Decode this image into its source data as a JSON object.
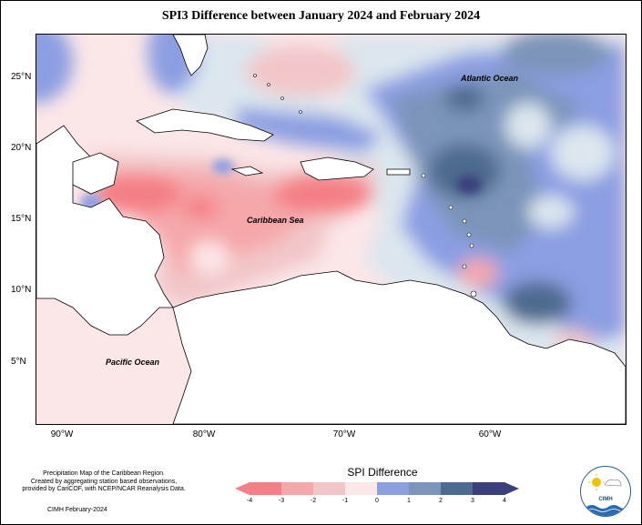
{
  "title": "SPI3 Difference between January 2024 and February 2024",
  "axes": {
    "lat_ticks": [
      "25°N",
      "20°N",
      "15°N",
      "10°N",
      "5°N"
    ],
    "lon_ticks": [
      "90°W",
      "80°W",
      "70°W",
      "60°W"
    ]
  },
  "labels": {
    "atlantic": "Atlantic Ocean",
    "caribbean": "Caribbean Sea",
    "pacific": "Pacific Ocean"
  },
  "legend": {
    "title": "SPI Difference",
    "ticks": [
      "-4",
      "-3",
      "-2",
      "-1",
      "0",
      "1",
      "2",
      "3",
      "4"
    ],
    "colors": [
      "#f47f86",
      "#f5a7aa",
      "#f2c6c8",
      "#fbe6e8",
      "#dbe6ee",
      "#8c9ee2",
      "#7c94ba",
      "#4d6a8f",
      "#3b3f7c"
    ]
  },
  "credits": {
    "line1": "Precipitation Map of the Caribbean Region.",
    "line2": "Created by aggregating station based observations,",
    "line3": "provided by CariCOF, with NCEP/NCAR Reanalysis Data."
  },
  "footnote": "CIMH February-2024",
  "logo": {
    "text": "CIMH"
  }
}
